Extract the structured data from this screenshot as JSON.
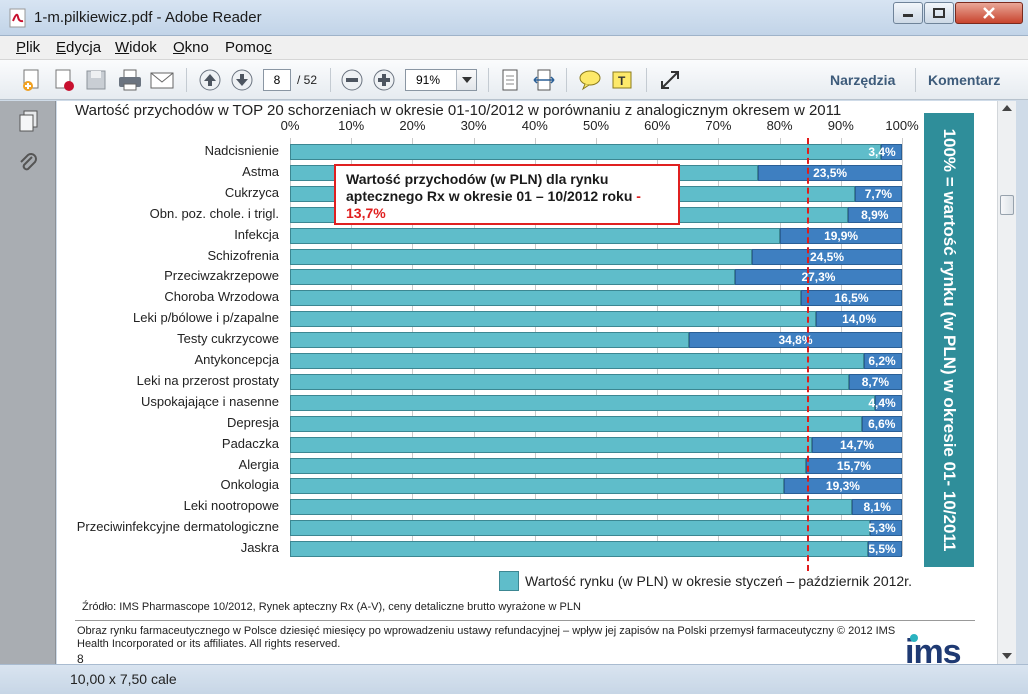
{
  "window": {
    "title": "1-m.pilkiewicz.pdf - Adobe Reader"
  },
  "menu": [
    {
      "u": "P",
      "rest": "lik"
    },
    {
      "u": "E",
      "rest": "dycja"
    },
    {
      "u": "W",
      "rest": "idok"
    },
    {
      "u": "O",
      "rest": "kno"
    },
    {
      "u": "",
      "rest": "Pomo",
      "u2": "c"
    }
  ],
  "toolbar": {
    "page_current": "8",
    "page_total": "/ 52",
    "zoom": "91%",
    "tools_label": "Narzędzia",
    "comment_label": "Komentarz"
  },
  "status": {
    "page_size": "10,00 x 7,50 cale"
  },
  "document": {
    "title": "Wartość przychodów w TOP 20 schorzeniach w okresie 01-10/2012 w porównaniu z analogicznym okresem w 2011",
    "callout": {
      "text": "Wartość przychodów (w PLN) dla rynku aptecznego Rx  w okresie 01 – 10/2012 roku",
      "dash": " - ",
      "value": "13,7%"
    },
    "side_box": "100% = wartość rynku (w PLN) w okresie 01- 10/2011",
    "legend": "Wartość rynku (w PLN) w okresie styczeń – październik 2012r.",
    "source": "Źródło: IMS Pharmascope 10/2012, Rynek apteczny Rx (A-V), ceny detaliczne brutto wyrażone w PLN",
    "footer": "Obraz rynku farmaceutycznego w Polsce dziesięć miesięcy po wprowadzeniu ustawy refundacyjnej – wpływ jej zapisów na Polski przemysł farmaceutyczny © 2012 IMS Health Incorporated or its affiliates. All rights reserved.",
    "page_number": "8",
    "logo": "ims"
  },
  "chart_data": {
    "type": "bar",
    "orientation": "horizontal",
    "stacked": true,
    "xlim": [
      0,
      100
    ],
    "x_ticks": [
      "0%",
      "10%",
      "20%",
      "30%",
      "40%",
      "50%",
      "60%",
      "70%",
      "80%",
      "90%",
      "100%"
    ],
    "reference_line": 84.6,
    "categories": [
      "Nadcisnienie",
      "Astma",
      "Cukrzyca",
      "Obn. poz. chole. i trigl.",
      "Infekcja",
      "Schizofrenia",
      "Przeciwzakrzepowe",
      "Choroba Wrzodowa",
      "Leki p/bólowe i p/zapalne",
      "Testy cukrzycowe",
      "Antykoncepcja",
      "Leki na przerost prostaty",
      "Uspokajające i nasenne",
      "Depresja",
      "Padaczka",
      "Alergia",
      "Onkologia",
      "Leki nootropowe",
      "Przeciwinfekcyjne dermatologiczne",
      "Jaskra"
    ],
    "series": [
      {
        "name": "Wartość rynku (w PLN) w okresie styczeń – październik 2012r.",
        "color": "#5fbdca",
        "values": [
          96.6,
          76.5,
          92.3,
          91.1,
          80.1,
          75.5,
          72.7,
          83.5,
          86.0,
          65.2,
          93.8,
          91.3,
          95.6,
          93.4,
          85.3,
          84.3,
          80.7,
          91.9,
          94.7,
          94.5
        ]
      },
      {
        "color": "#3e7fc1",
        "values": [
          3.4,
          23.5,
          7.7,
          8.9,
          19.9,
          24.5,
          27.3,
          16.5,
          14.0,
          34.8,
          6.2,
          8.7,
          4.4,
          6.6,
          14.7,
          15.7,
          19.3,
          8.1,
          5.3,
          5.5
        ],
        "labels": [
          "3,4%",
          "23,5%",
          "7,7%",
          "8,9%",
          "19,9%",
          "24,5%",
          "27,3%",
          "16,5%",
          "14,0%",
          "34,8%",
          "6,2%",
          "8,7%",
          "4,4%",
          "6,6%",
          "14,7%",
          "15,7%",
          "19,3%",
          "8,1%",
          "5,3%",
          "5,5%"
        ]
      }
    ]
  }
}
